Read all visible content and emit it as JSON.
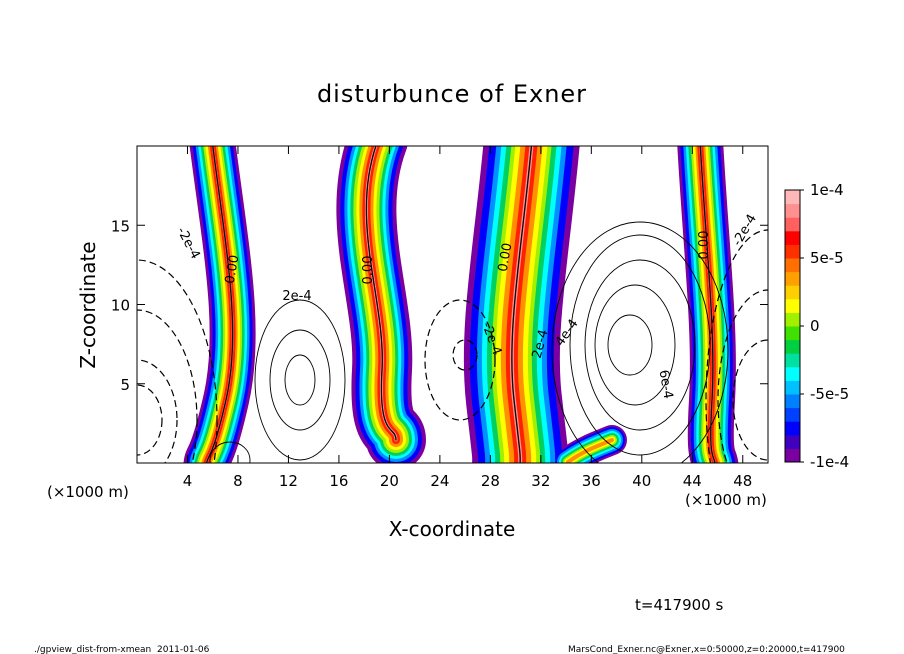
{
  "chart_data": {
    "type": "contour",
    "title": "disturbunce of Exner",
    "x_label": "X-coordinate",
    "y_label": "Z-coordinate",
    "x_unit": "(×1000 m)",
    "xlim": [
      0,
      50
    ],
    "ylim": [
      0,
      20
    ],
    "xticks": [
      4,
      8,
      12,
      16,
      20,
      24,
      28,
      32,
      36,
      40,
      44,
      48
    ],
    "yticks": [
      5,
      10,
      15
    ],
    "colorbar": {
      "lim": [
        -0.0001,
        0.0001
      ],
      "ticks": [
        {
          "value": 0.0001,
          "label": "1e-4"
        },
        {
          "value": 5e-05,
          "label": "5e-5"
        },
        0,
        {
          "value": -5e-05,
          "label": "-5e-5"
        },
        {
          "value": -0.0001,
          "label": "-1e-4"
        }
      ],
      "colors": [
        "#7a00a0",
        "#4000c0",
        "#0000ff",
        "#0040ff",
        "#0080ff",
        "#00c0ff",
        "#00ffff",
        "#00e0a0",
        "#00d040",
        "#40e000",
        "#a0f000",
        "#ffff00",
        "#ffd000",
        "#ffa000",
        "#ff7000",
        "#ff3000",
        "#ff0000",
        "#ff6060",
        "#ff9090",
        "#ffb8b8"
      ]
    },
    "contour_labels": [
      "-2e-4",
      "0.00",
      "2e-4",
      "0.00",
      "-2e-4",
      "0.00",
      "2e-4",
      "4e-4",
      "6e-4",
      "0.00",
      "-2e-4"
    ],
    "annotation": "t=417900 s",
    "footer_left": "./gpview_dist-from-xmean  2011-01-06",
    "footer_right": "MarsCond_Exner.nc@Exner,x=0:50000,z=0:20000,t=417900"
  }
}
